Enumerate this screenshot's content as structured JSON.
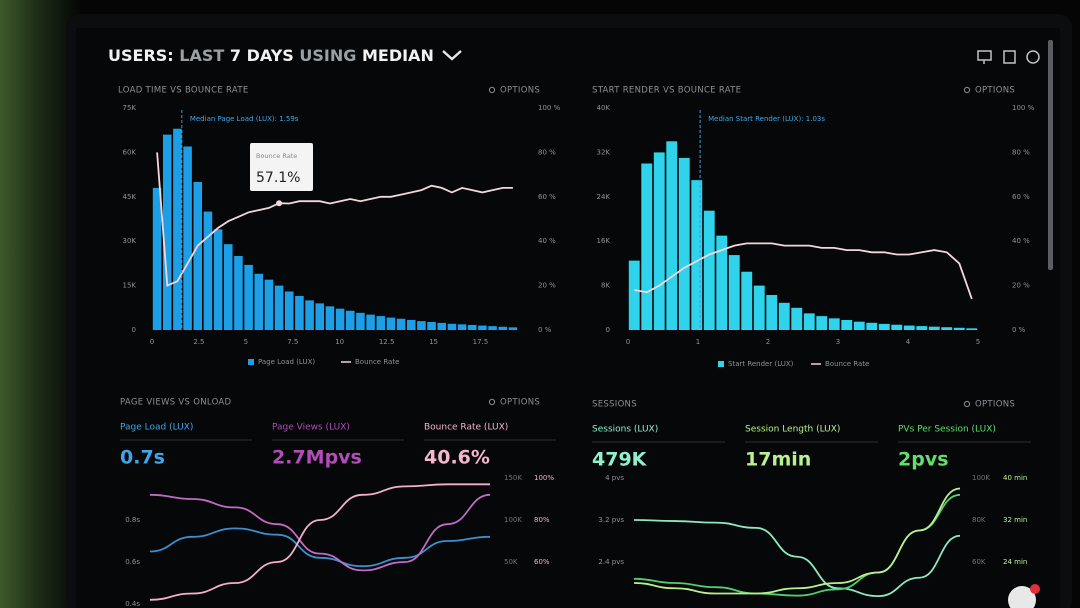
{
  "header": {
    "title_parts": [
      "USERS:",
      "LAST",
      "7 DAYS",
      "USING",
      "MEDIAN"
    ]
  },
  "panels": [
    {
      "title": "LOAD TIME VS BOUNCE RATE",
      "options": "OPTIONS",
      "chart": {
        "type": "histogram-line",
        "xlim": [
          0,
          19.5
        ],
        "xticks": [
          0,
          2.5,
          5,
          7.5,
          10,
          12.5,
          15,
          17.5
        ],
        "ylim": [
          0,
          75000
        ],
        "yticks": [
          0,
          {
            "value": 15000,
            "label": "15K"
          },
          {
            "value": 30000,
            "label": "30K"
          },
          {
            "value": 45000,
            "label": "45K"
          },
          {
            "value": 60000,
            "label": "60K"
          },
          {
            "value": 75000,
            "label": "75K"
          }
        ],
        "y2lim": [
          0,
          100
        ],
        "y2ticks": [
          {
            "value": 0,
            "label": "0 %"
          },
          {
            "value": 20,
            "label": "20 %"
          },
          {
            "value": 40,
            "label": "40 %"
          },
          {
            "value": 60,
            "label": "60 %"
          },
          {
            "value": 80,
            "label": "80 %"
          },
          {
            "value": 100,
            "label": "100 %"
          }
        ],
        "median": 1.59,
        "median_label": "Median Page Load (LUX): 1.59s",
        "tooltip": {
          "label": "Bounce Rate",
          "value": "57.1%"
        },
        "series": [
          {
            "name": "Page Load (LUX)",
            "color": "#1c9fe6",
            "values": [
              48000,
              66000,
              68000,
              62000,
              50000,
              40000,
              34000,
              29000,
              25000,
              22000,
              19000,
              17000,
              15000,
              13000,
              11500,
              10000,
              9000,
              8000,
              7200,
              6500,
              5800,
              5200,
              4700,
              4200,
              3800,
              3400,
              3000,
              2700,
              2400,
              2100,
              1900,
              1700,
              1500,
              1300,
              1100,
              900
            ]
          },
          {
            "name": "Bounce Rate",
            "color": "#f2d7dc",
            "axis": "y2",
            "values": [
              80,
              20,
              22,
              30,
              38,
              42,
              46,
              49,
              51,
              53,
              54,
              55,
              57.1,
              57,
              58,
              58,
              58,
              57,
              58,
              59,
              58,
              59,
              60,
              60,
              61,
              62,
              63,
              65,
              64,
              62,
              64,
              63,
              62,
              63,
              64,
              64
            ]
          }
        ]
      }
    },
    {
      "title": "START RENDER VS BOUNCE RATE",
      "options": "OPTIONS",
      "chart": {
        "type": "histogram-line",
        "xlim": [
          0,
          5
        ],
        "xticks": [
          0,
          1,
          2,
          3,
          4,
          5
        ],
        "ylim": [
          0,
          40000
        ],
        "yticks": [
          0,
          {
            "value": 8000,
            "label": "8K"
          },
          {
            "value": 16000,
            "label": "16K"
          },
          {
            "value": 24000,
            "label": "24K"
          },
          {
            "value": 32000,
            "label": "32K"
          },
          {
            "value": 40000,
            "label": "40K"
          }
        ],
        "y2lim": [
          0,
          100
        ],
        "y2ticks": [
          {
            "value": 0,
            "label": "0 %"
          },
          {
            "value": 20,
            "label": "20 %"
          },
          {
            "value": 40,
            "label": "40 %"
          },
          {
            "value": 60,
            "label": "60 %"
          },
          {
            "value": 80,
            "label": "80 %"
          },
          {
            "value": 100,
            "label": "100 %"
          }
        ],
        "median": 1.03,
        "median_label": "Median Start Render (LUX): 1.03s",
        "series": [
          {
            "name": "Start Render (LUX)",
            "color": "#2fd3ec",
            "values": [
              12500,
              30000,
              32000,
              34000,
              31000,
              27000,
              21500,
              17000,
              13500,
              10500,
              8000,
              6300,
              4900,
              4000,
              3000,
              2500,
              2100,
              1800,
              1500,
              1300,
              1100,
              950,
              800,
              700,
              600,
              500,
              400,
              300
            ]
          },
          {
            "name": "Bounce Rate",
            "color": "#f2d7dc",
            "axis": "y2",
            "values": [
              18,
              17,
              20,
              24,
              28,
              31,
              34,
              36,
              38,
              39,
              39,
              39,
              38,
              38,
              38,
              37,
              37,
              36,
              36,
              35,
              35,
              34,
              34,
              35,
              36,
              35,
              30,
              14
            ]
          }
        ]
      }
    },
    {
      "title": "PAGE VIEWS VS ONLOAD",
      "options": "OPTIONS",
      "kpis": [
        {
          "label": "Page Load (LUX)",
          "value": "0.7s",
          "color": "#3fa6ec"
        },
        {
          "label": "Page Views (LUX)",
          "value": "2.7Mpvs",
          "color": "#b24cb8"
        },
        {
          "label": "Bounce Rate (LUX)",
          "value": "40.6%",
          "color": "#f6b6cc"
        }
      ],
      "chart": {
        "type": "multi-line",
        "ylim": [
          0.4,
          1.0
        ],
        "yticks": [
          {
            "value": 0.8,
            "label": "0.8s"
          },
          {
            "value": 0.6,
            "label": "0.6s"
          },
          {
            "value": 0.4,
            "label": "0.4s"
          }
        ],
        "y2lim": [
          0,
          150000
        ],
        "y2ticks": [
          {
            "value": 150000,
            "label": "150K"
          },
          {
            "value": 100000,
            "label": "100K"
          },
          {
            "value": 50000,
            "label": "50K"
          }
        ],
        "y3lim": [
          40,
          100
        ],
        "y3ticks": [
          {
            "value": 100,
            "label": "100%"
          },
          {
            "value": 80,
            "label": "80%"
          },
          {
            "value": 60,
            "label": "60%"
          }
        ],
        "series": [
          {
            "color": "#3a8fd0",
            "values": [
              0.65,
              0.72,
              0.76,
              0.73,
              0.62,
              0.58,
              0.62,
              0.7,
              0.72
            ]
          },
          {
            "color": "#c06cc4",
            "axis": "y2",
            "values": [
              130000,
              125000,
              115000,
              95000,
              60000,
              40000,
              50000,
              95000,
              130000
            ]
          },
          {
            "color": "#f4b0c6",
            "axis": "y3",
            "values": [
              42,
              45,
              50,
              60,
              80,
              92,
              96,
              97,
              97
            ]
          }
        ]
      }
    },
    {
      "title": "SESSIONS",
      "options": "OPTIONS",
      "kpis": [
        {
          "label": "Sessions (LUX)",
          "value": "479K",
          "color": "#8ef0cc"
        },
        {
          "label": "Session Length (LUX)",
          "value": "17min",
          "color": "#b8f28e"
        },
        {
          "label": "PVs Per Session (LUX)",
          "value": "2pvs",
          "color": "#62de6a"
        }
      ],
      "chart": {
        "type": "multi-line",
        "ylim": [
          1.6,
          4
        ],
        "yticks": [
          {
            "value": 4,
            "label": "4 pvs"
          },
          {
            "value": 3.2,
            "label": "3.2 pvs"
          },
          {
            "value": 2.4,
            "label": "2.4 pvs"
          }
        ],
        "y2lim": [
          40000,
          100000
        ],
        "y2ticks": [
          {
            "value": 100000,
            "label": "100K"
          },
          {
            "value": 80000,
            "label": "80K"
          },
          {
            "value": 60000,
            "label": "60K"
          }
        ],
        "y3lim": [
          16,
          40
        ],
        "y3ticks": [
          {
            "value": 40,
            "label": "40 min"
          },
          {
            "value": 32,
            "label": "32 min"
          },
          {
            "value": 24,
            "label": "24 min"
          }
        ],
        "series": [
          {
            "color": "#8ee8c0",
            "values": [
              3.2,
              3.18,
              3.15,
              3.05,
              2.5,
              1.9,
              1.75,
              2.1,
              2.9
            ]
          },
          {
            "color": "#50d070",
            "axis": "y2",
            "values": [
              52000,
              50000,
              48000,
              45000,
              44000,
              47000,
              55000,
              75000,
              92000
            ]
          },
          {
            "color": "#b8f090",
            "axis": "y3",
            "values": [
              20,
              19,
              18,
              18,
              19,
              20,
              22,
              30,
              38
            ]
          }
        ]
      }
    }
  ]
}
